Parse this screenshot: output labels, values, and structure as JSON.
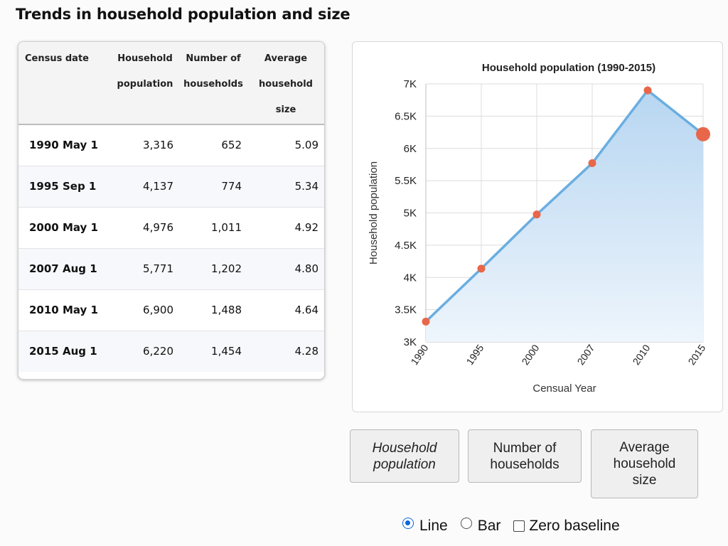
{
  "page": {
    "title": "Trends in household population and size"
  },
  "table": {
    "headers": {
      "date": "Census date",
      "population": "Household population",
      "households": "Number of households",
      "avg_size": "Average household size"
    },
    "rows": [
      {
        "date": "1990 May 1",
        "population": "3,316",
        "households": "652",
        "avg_size": "5.09"
      },
      {
        "date": "1995 Sep 1",
        "population": "4,137",
        "households": "774",
        "avg_size": "5.34"
      },
      {
        "date": "2000 May 1",
        "population": "4,976",
        "households": "1,011",
        "avg_size": "4.92"
      },
      {
        "date": "2007 Aug 1",
        "population": "5,771",
        "households": "1,202",
        "avg_size": "4.80"
      },
      {
        "date": "2010 May 1",
        "population": "6,900",
        "households": "1,488",
        "avg_size": "4.64"
      },
      {
        "date": "2015 Aug 1",
        "population": "6,220",
        "households": "1,454",
        "avg_size": "4.28"
      }
    ]
  },
  "chart_data": {
    "type": "area",
    "title": "Household population (1990-2015)",
    "xlabel": "Censual Year",
    "ylabel": "Household population",
    "categories": [
      "1990",
      "1995",
      "2000",
      "2007",
      "2010",
      "2015"
    ],
    "series": [
      {
        "values": [
          3316,
          4137,
          4976,
          5771,
          6900,
          6220
        ]
      }
    ],
    "ylim": [
      3000,
      7000
    ],
    "yticks": [
      3000,
      3500,
      4000,
      4500,
      5000,
      5500,
      6000,
      6500,
      7000
    ],
    "ytick_labels": [
      "3K",
      "3.5K",
      "4K",
      "4.5K",
      "5K",
      "5.5K",
      "6K",
      "6.5K",
      "7K"
    ],
    "grid": true,
    "legend": "none",
    "highlighted_point": "2015",
    "colors": {
      "line": "#6aaee0",
      "marker": "#e8674a",
      "fill_top": "#b7d6f1",
      "fill_bottom": "#eef5fc"
    }
  },
  "controls": {
    "buttons": [
      {
        "label": "Household population",
        "active": true
      },
      {
        "label": "Number of households",
        "active": false
      },
      {
        "label": "Average household size",
        "active": false
      }
    ],
    "options": {
      "line": {
        "label": "Line",
        "checked": true
      },
      "bar": {
        "label": "Bar",
        "checked": false
      },
      "zero_baseline": {
        "label": "Zero baseline",
        "checked": false
      }
    }
  }
}
